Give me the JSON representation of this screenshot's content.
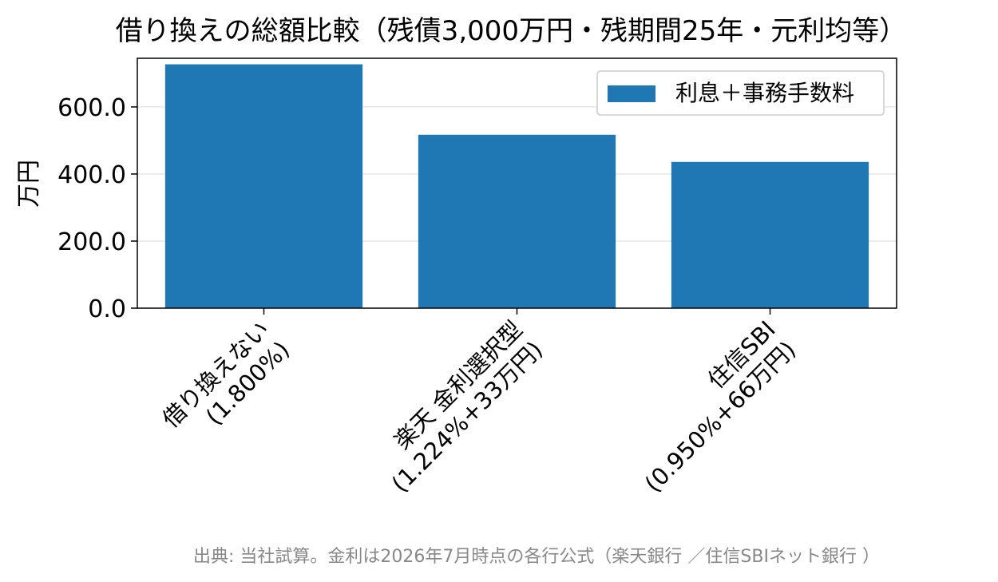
{
  "chart_data": {
    "type": "bar",
    "title": "借り換えの総額比較（残債3,000万円・残期間25年・元利均等）",
    "xlabel": "",
    "ylabel": "万円",
    "categories": [
      [
        "借り換えない",
        "(1.800%)"
      ],
      [
        "楽天 金利選択型",
        "(1.224%+33万円)"
      ],
      [
        "住信SBI",
        "(0.950%+66万円)"
      ]
    ],
    "series": [
      {
        "name": "利息＋事務手数料",
        "values": [
          727,
          517,
          436
        ]
      }
    ],
    "ylim": [
      0,
      745
    ],
    "yticks": [
      "0.0",
      "200.0",
      "400.0",
      "600.0"
    ],
    "grid": "horizontal",
    "legend": "top-right",
    "bar_color": "#1f77b4",
    "source_note": "出典: 当社試算。金利は2026年7月時点の各行公式（楽天銀行 ／住信SBIネット銀行 ）"
  }
}
